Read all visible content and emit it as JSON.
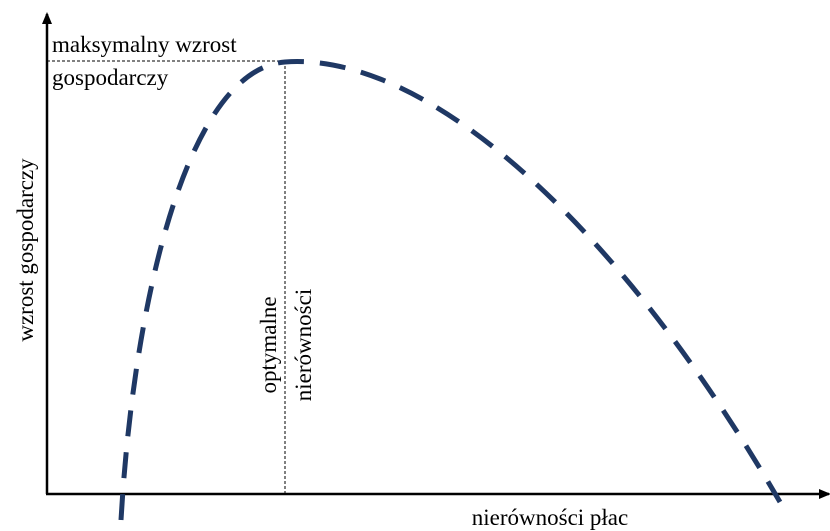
{
  "labels": {
    "maximum": [
      "maksymalny wzrost",
      "gospodarczy"
    ],
    "optimum": [
      "optymalne",
      "nierówności"
    ],
    "y_axis": "wzrost gospodarczy",
    "x_axis": "nierówności płac"
  }
}
